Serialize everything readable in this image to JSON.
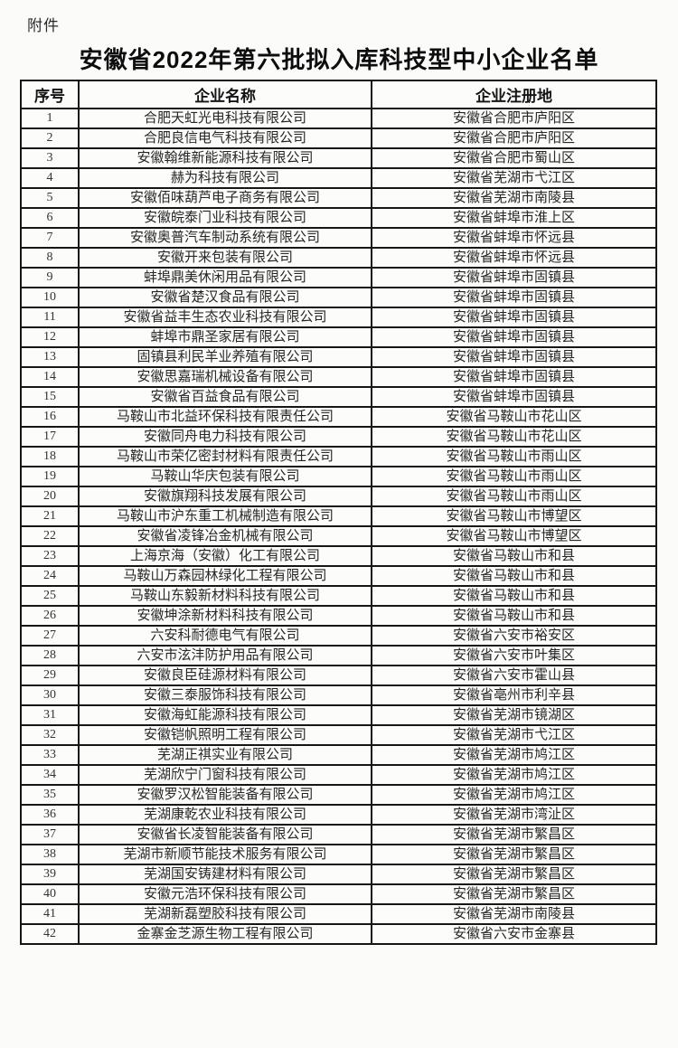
{
  "page": {
    "attachment_label": "附件",
    "title": "安徽省2022年第六批拟入库科技型中小企业名单"
  },
  "table": {
    "headers": [
      "序号",
      "企业名称",
      "企业注册地"
    ],
    "rows": [
      {
        "no": "1",
        "company": "合肥天虹光电科技有限公司",
        "location": "安徽省合肥市庐阳区"
      },
      {
        "no": "2",
        "company": "合肥良信电气科技有限公司",
        "location": "安徽省合肥市庐阳区"
      },
      {
        "no": "3",
        "company": "安徽翰维新能源科技有限公司",
        "location": "安徽省合肥市蜀山区"
      },
      {
        "no": "4",
        "company": "赫为科技有限公司",
        "location": "安徽省芜湖市弋江区"
      },
      {
        "no": "5",
        "company": "安徽佰味葫芦电子商务有限公司",
        "location": "安徽省芜湖市南陵县"
      },
      {
        "no": "6",
        "company": "安徽皖泰门业科技有限公司",
        "location": "安徽省蚌埠市淮上区"
      },
      {
        "no": "7",
        "company": "安徽奥普汽车制动系统有限公司",
        "location": "安徽省蚌埠市怀远县"
      },
      {
        "no": "8",
        "company": "安徽开来包装有限公司",
        "location": "安徽省蚌埠市怀远县"
      },
      {
        "no": "9",
        "company": "蚌埠鼎美休闲用品有限公司",
        "location": "安徽省蚌埠市固镇县"
      },
      {
        "no": "10",
        "company": "安徽省楚汉食品有限公司",
        "location": "安徽省蚌埠市固镇县"
      },
      {
        "no": "11",
        "company": "安徽省益丰生态农业科技有限公司",
        "location": "安徽省蚌埠市固镇县"
      },
      {
        "no": "12",
        "company": "蚌埠市鼎圣家居有限公司",
        "location": "安徽省蚌埠市固镇县"
      },
      {
        "no": "13",
        "company": "固镇县利民羊业养殖有限公司",
        "location": "安徽省蚌埠市固镇县"
      },
      {
        "no": "14",
        "company": "安徽思嘉瑞机械设备有限公司",
        "location": "安徽省蚌埠市固镇县"
      },
      {
        "no": "15",
        "company": "安徽省百益食品有限公司",
        "location": "安徽省蚌埠市固镇县"
      },
      {
        "no": "16",
        "company": "马鞍山市北益环保科技有限责任公司",
        "location": "安徽省马鞍山市花山区"
      },
      {
        "no": "17",
        "company": "安徽同舟电力科技有限公司",
        "location": "安徽省马鞍山市花山区"
      },
      {
        "no": "18",
        "company": "马鞍山市荣亿密封材料有限责任公司",
        "location": "安徽省马鞍山市雨山区"
      },
      {
        "no": "19",
        "company": "马鞍山华庆包装有限公司",
        "location": "安徽省马鞍山市雨山区"
      },
      {
        "no": "20",
        "company": "安徽旗翔科技发展有限公司",
        "location": "安徽省马鞍山市雨山区"
      },
      {
        "no": "21",
        "company": "马鞍山市沪东重工机械制造有限公司",
        "location": "安徽省马鞍山市博望区"
      },
      {
        "no": "22",
        "company": "安徽省凌锋冶金机械有限公司",
        "location": "安徽省马鞍山市博望区"
      },
      {
        "no": "23",
        "company": "上海京海（安徽）化工有限公司",
        "location": "安徽省马鞍山市和县"
      },
      {
        "no": "24",
        "company": "马鞍山万森园林绿化工程有限公司",
        "location": "安徽省马鞍山市和县"
      },
      {
        "no": "25",
        "company": "马鞍山东毅新材料科技有限公司",
        "location": "安徽省马鞍山市和县"
      },
      {
        "no": "26",
        "company": "安徽坤涂新材料科技有限公司",
        "location": "安徽省马鞍山市和县"
      },
      {
        "no": "27",
        "company": "六安科耐德电气有限公司",
        "location": "安徽省六安市裕安区"
      },
      {
        "no": "28",
        "company": "六安市泫沣防护用品有限公司",
        "location": "安徽省六安市叶集区"
      },
      {
        "no": "29",
        "company": "安徽良臣硅源材料有限公司",
        "location": "安徽省六安市霍山县"
      },
      {
        "no": "30",
        "company": "安徽三泰服饰科技有限公司",
        "location": "安徽省亳州市利辛县"
      },
      {
        "no": "31",
        "company": "安徽海虹能源科技有限公司",
        "location": "安徽省芜湖市镜湖区"
      },
      {
        "no": "32",
        "company": "安徽铠帆照明工程有限公司",
        "location": "安徽省芜湖市弋江区"
      },
      {
        "no": "33",
        "company": "芜湖正祺实业有限公司",
        "location": "安徽省芜湖市鸠江区"
      },
      {
        "no": "34",
        "company": "芜湖欣宁门窗科技有限公司",
        "location": "安徽省芜湖市鸠江区"
      },
      {
        "no": "35",
        "company": "安徽罗汉松智能装备有限公司",
        "location": "安徽省芜湖市鸠江区"
      },
      {
        "no": "36",
        "company": "芜湖康乾农业科技有限公司",
        "location": "安徽省芜湖市湾沚区"
      },
      {
        "no": "37",
        "company": "安徽省长凌智能装备有限公司",
        "location": "安徽省芜湖市繁昌区"
      },
      {
        "no": "38",
        "company": "芜湖市新顺节能技术服务有限公司",
        "location": "安徽省芜湖市繁昌区"
      },
      {
        "no": "39",
        "company": "芜湖国安铸建材料有限公司",
        "location": "安徽省芜湖市繁昌区"
      },
      {
        "no": "40",
        "company": "安徽元浩环保科技有限公司",
        "location": "安徽省芜湖市繁昌区"
      },
      {
        "no": "41",
        "company": "芜湖新磊塑胶科技有限公司",
        "location": "安徽省芜湖市南陵县"
      },
      {
        "no": "42",
        "company": "金寨金芝源生物工程有限公司",
        "location": "安徽省六安市金寨县"
      }
    ]
  }
}
